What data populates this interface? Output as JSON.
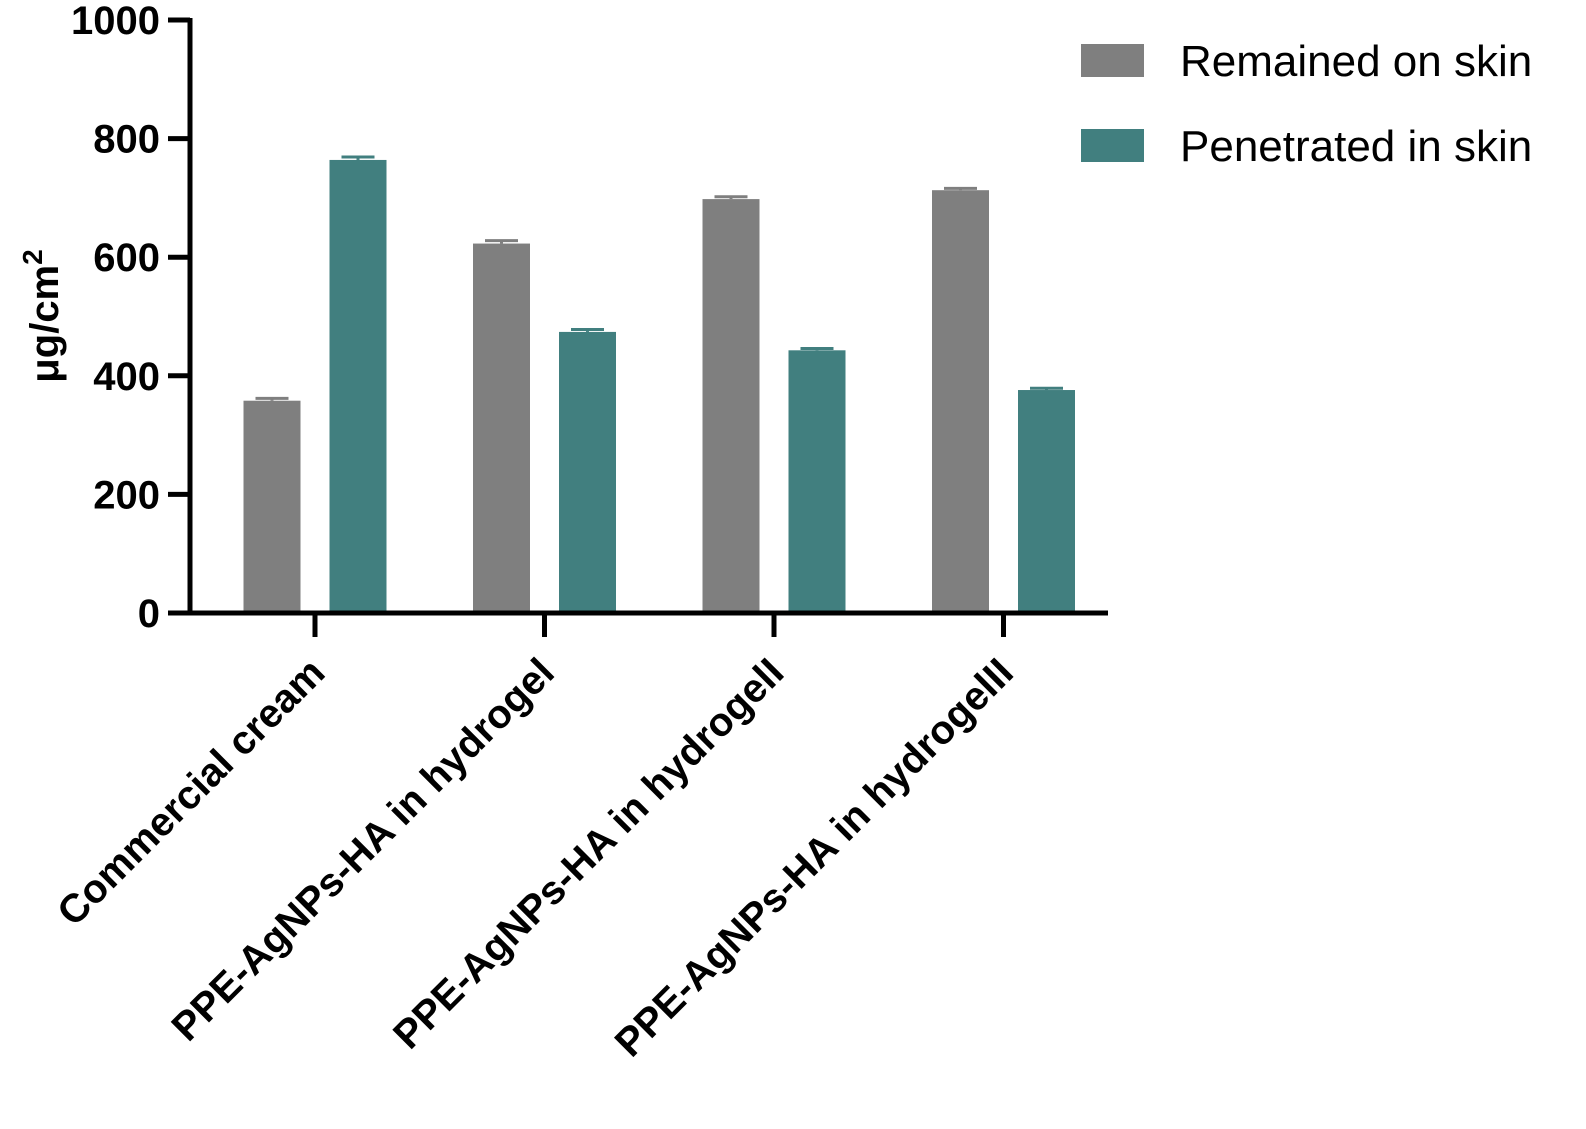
{
  "chart_data": {
    "type": "bar",
    "title": "",
    "xlabel": "",
    "ylabel": "μg/cm",
    "ylabel_superscript": "2",
    "ylim": [
      0,
      1000
    ],
    "yticks": [
      "0",
      "200",
      "400",
      "600",
      "800",
      "1000"
    ],
    "ytick_values": [
      0,
      200,
      400,
      600,
      800,
      1000
    ],
    "categories": [
      "Commercial cream",
      "PPE-AgNPs-HA in hydrogel",
      "PPE-AgNPs-HA in hydrogelI",
      "PPE-AgNPs-HA in hydrogelII"
    ],
    "series": [
      {
        "name": "Remained on skin",
        "color": "#7f7f7f",
        "values": [
          358,
          623,
          698,
          713
        ],
        "errors": [
          4,
          5,
          4,
          3
        ]
      },
      {
        "name": "Penetrated in skin",
        "color": "#417f7f",
        "values": [
          764,
          474,
          443,
          376
        ],
        "errors": [
          5,
          4,
          3,
          3
        ]
      }
    ],
    "legend_position": "top-right",
    "grid": false
  }
}
